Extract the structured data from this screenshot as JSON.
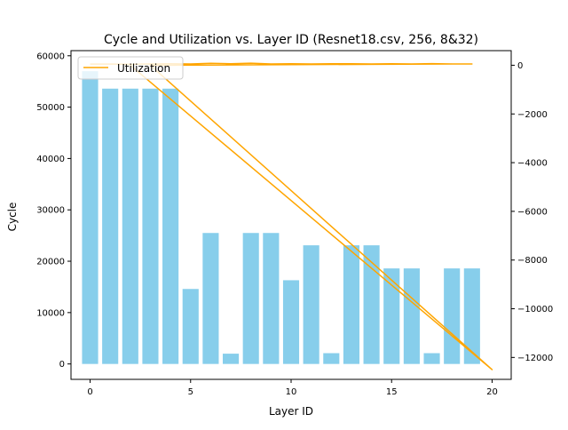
{
  "chart_data": {
    "type": "bar",
    "title": "Cycle and Utilization vs. Layer ID (Resnet18.csv, 256, 8&32)",
    "xlabel": "Layer ID",
    "ylabel": "Cycle",
    "xlim": [
      -0.95,
      20.95
    ],
    "ylim": [
      -3000,
      61000
    ],
    "y2lim": [
      -12900,
      600
    ],
    "x_ticks": [
      0,
      5,
      10,
      15,
      20
    ],
    "y_ticks": [
      0,
      10000,
      20000,
      30000,
      40000,
      50000,
      60000
    ],
    "y2_ticks": [
      0,
      -2000,
      -4000,
      -6000,
      -8000,
      -10000,
      -12000
    ],
    "legend": {
      "position": "top-left",
      "entries": [
        "Utilization"
      ]
    },
    "colors": {
      "bars": "#87ceeb",
      "line": "#ffa500"
    },
    "series": [
      {
        "name": "Cycle",
        "kind": "bar",
        "axis": "left",
        "x": [
          0,
          1,
          2,
          3,
          4,
          5,
          6,
          7,
          8,
          9,
          10,
          11,
          12,
          13,
          14,
          15,
          16,
          17,
          18,
          19
        ],
        "values": [
          57000,
          53600,
          53600,
          53600,
          53600,
          14600,
          25500,
          2000,
          25500,
          25500,
          16300,
          23100,
          2100,
          23100,
          23100,
          18600,
          18600,
          2100,
          18600,
          18600
        ]
      },
      {
        "name": "Utilization",
        "kind": "line",
        "axis": "right",
        "points": [
          [
            0,
            50
          ],
          [
            1,
            50
          ],
          [
            2,
            40
          ],
          [
            3,
            55
          ],
          [
            4,
            60
          ],
          [
            5,
            55
          ],
          [
            6,
            80
          ],
          [
            7,
            60
          ],
          [
            8,
            85
          ],
          [
            9,
            55
          ],
          [
            10,
            60
          ],
          [
            11,
            55
          ],
          [
            12,
            60
          ],
          [
            13,
            60
          ],
          [
            14,
            55
          ],
          [
            15,
            60
          ],
          [
            16,
            55
          ],
          [
            17,
            65
          ],
          [
            18,
            55
          ],
          [
            19,
            55
          ],
          [
            3,
            0
          ],
          [
            20,
            -12500
          ],
          [
            2,
            0
          ],
          [
            20,
            -12500
          ]
        ]
      }
    ]
  }
}
